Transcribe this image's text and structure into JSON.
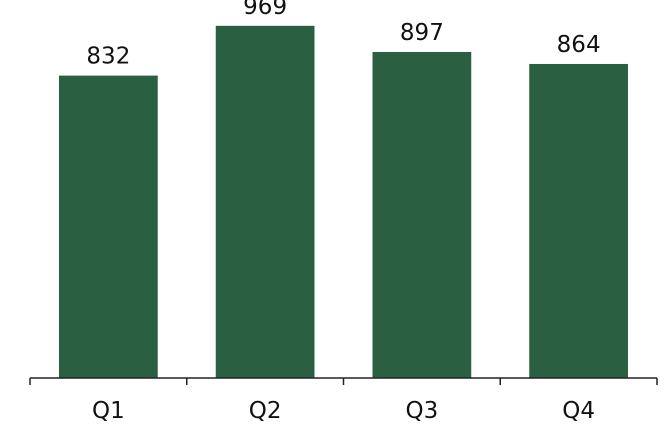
{
  "chart_data": {
    "type": "bar",
    "categories": [
      "Q1",
      "Q2",
      "Q3",
      "Q4"
    ],
    "values": [
      832,
      969,
      897,
      864
    ],
    "title": "",
    "xlabel": "",
    "ylabel": "",
    "ylim": [
      0,
      1040
    ],
    "grid": false,
    "legend": "none",
    "bar_color": "#2a6041",
    "axis_color": "#222222",
    "text_color": "#111111",
    "show_value_labels": true,
    "show_y_axis": false
  }
}
